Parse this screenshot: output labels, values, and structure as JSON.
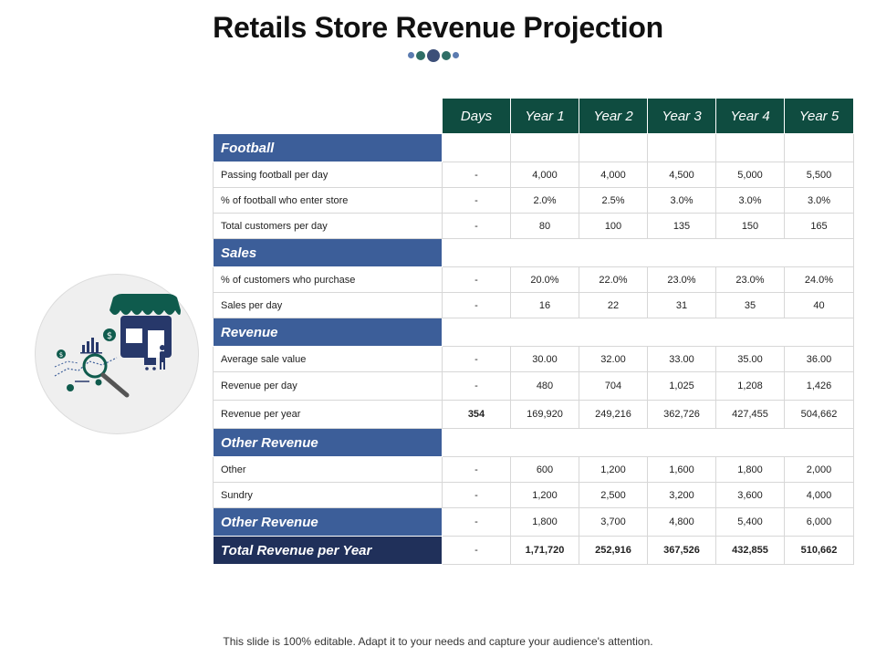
{
  "title": "Retails Store Revenue Projection",
  "header": {
    "days": "Days",
    "years": [
      "Year 1",
      "Year 2",
      "Year 3",
      "Year 4",
      "Year 5"
    ]
  },
  "sections": {
    "football": "Football",
    "sales": "Sales",
    "revenue": "Revenue",
    "other_revenue": "Other Revenue",
    "other_revenue_total": "Other Revenue",
    "total": "Total Revenue per Year"
  },
  "rows": {
    "passing": {
      "label": "Passing football per day",
      "days": "-",
      "values": [
        "4,000",
        "4,000",
        "4,500",
        "5,000",
        "5,500"
      ]
    },
    "enter": {
      "label": "% of football who enter store",
      "days": "-",
      "values": [
        "2.0%",
        "2.5%",
        "3.0%",
        "3.0%",
        "3.0%"
      ]
    },
    "customers": {
      "label": "Total customers per day",
      "days": "-",
      "values": [
        "80",
        "100",
        "135",
        "150",
        "165"
      ]
    },
    "purchase": {
      "label": "% of customers who purchase",
      "days": "-",
      "values": [
        "20.0%",
        "22.0%",
        "23.0%",
        "23.0%",
        "24.0%"
      ]
    },
    "sales_day": {
      "label": "Sales per day",
      "days": "-",
      "values": [
        "16",
        "22",
        "31",
        "35",
        "40"
      ]
    },
    "avg_sale": {
      "label": "Average sale value",
      "days": "-",
      "values": [
        "30.00",
        "32.00",
        "33.00",
        "35.00",
        "36.00"
      ]
    },
    "rev_day": {
      "label": "Revenue per day",
      "days": "-",
      "values": [
        "480",
        "704",
        "1,025",
        "1,208",
        "1,426"
      ]
    },
    "rev_year": {
      "label": "Revenue per year",
      "days": "354",
      "values": [
        "169,920",
        "249,216",
        "362,726",
        "427,455",
        "504,662"
      ]
    },
    "other": {
      "label": "Other",
      "days": "-",
      "values": [
        "600",
        "1,200",
        "1,600",
        "1,800",
        "2,000"
      ]
    },
    "sundry": {
      "label": "Sundry",
      "days": "-",
      "values": [
        "1,200",
        "2,500",
        "3,200",
        "3,600",
        "4,000"
      ]
    },
    "other_total": {
      "days": "-",
      "values": [
        "1,800",
        "3,700",
        "4,800",
        "5,400",
        "6,000"
      ]
    },
    "total": {
      "days": "-",
      "values": [
        "1,71,720",
        "252,916",
        "367,526",
        "432,855",
        "510,662"
      ]
    }
  },
  "footer": "This slide is 100% editable. Adapt it to your needs and capture your audience's attention.",
  "colors": {
    "header_bg": "#0f4c40",
    "section_bg": "#3c5e99",
    "total_bg": "#20305a",
    "icon_teal": "#0f5b4d",
    "icon_navy": "#27386a"
  },
  "icons": [
    "store-awning-icon",
    "magnifier-icon",
    "bar-chart-icon",
    "dollar-coin-icon",
    "shopping-cart-person-icon"
  ]
}
